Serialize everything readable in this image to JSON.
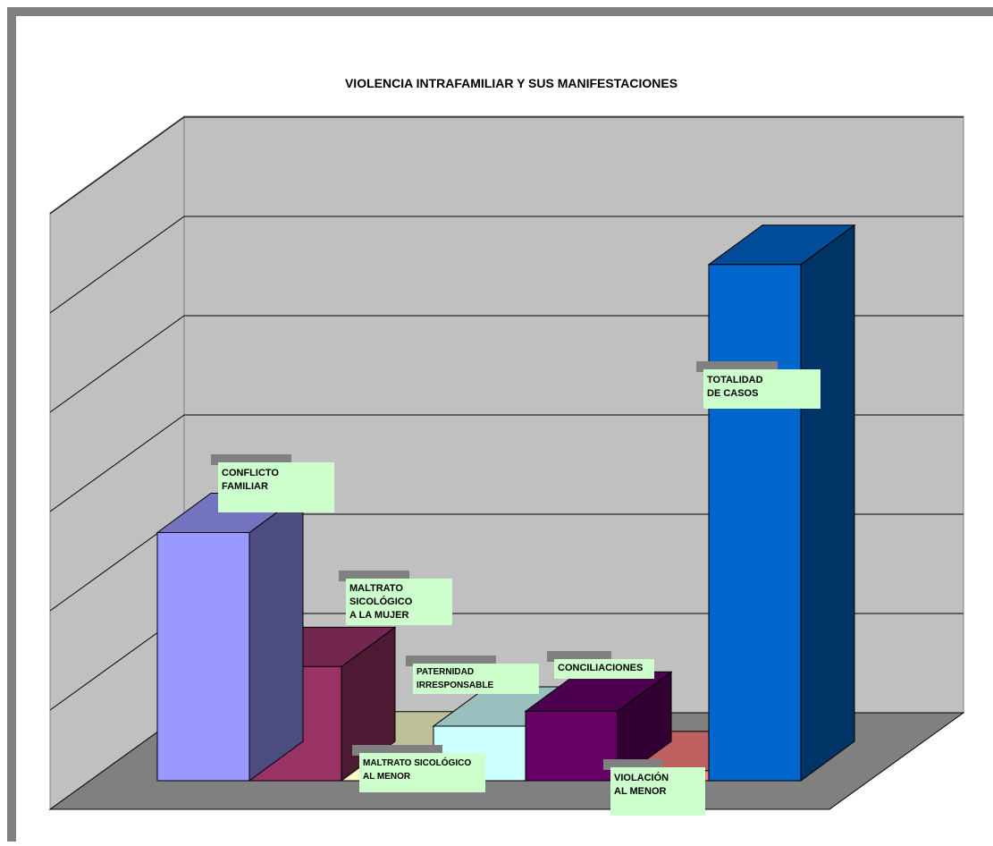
{
  "chart_data": {
    "type": "bar",
    "title": "VIOLENCIA INTRAFAMILIAR Y SUS MANIFESTACIONES",
    "xlabel": "",
    "ylabel": "",
    "ylim": [
      0,
      7
    ],
    "grid": true,
    "legend": "none",
    "categories": [
      "CONFLICTO FAMILIAR",
      "MALTRATO SICOLÓGICO A LA MUJER",
      "MALTRATO SICOLÓGICO AL MENOR",
      "PATERNIDAD IRRESPONSABLE",
      "CONCILIACIONES",
      "VIOLACIÓN AL MENOR",
      "TOTALIDAD DE CASOS"
    ],
    "values": [
      2.5,
      1.15,
      0.3,
      0.55,
      0.7,
      0.1,
      5.2
    ],
    "colors": [
      "#9999ff",
      "#993366",
      "#ffffcc",
      "#ccffff",
      "#660066",
      "#ff8080",
      "#0066cc"
    ],
    "side_colors": [
      "#4c4c80",
      "#4d1a33",
      "#808066",
      "#668080",
      "#330033",
      "#804040",
      "#003366"
    ],
    "top_colors": [
      "#7373bf",
      "#732650",
      "#bfbf99",
      "#99bfbf",
      "#4d004d",
      "#bf6060",
      "#004c99"
    ],
    "data_labels": [
      [
        "CONFLICTO",
        "FAMILIAR"
      ],
      [
        "MALTRATO",
        "SICOLÓGICO",
        " A LA MUJER"
      ],
      [
        "MALTRATO SICOLÓGICO",
        "AL MENOR"
      ],
      [
        "PATERNIDAD",
        "IRRESPONSABLE"
      ],
      [
        "CONCILIACIONES"
      ],
      [
        "VIOLACIÓN",
        "AL MENOR"
      ],
      [
        "TOTALIDAD",
        "DE CASOS"
      ]
    ]
  }
}
